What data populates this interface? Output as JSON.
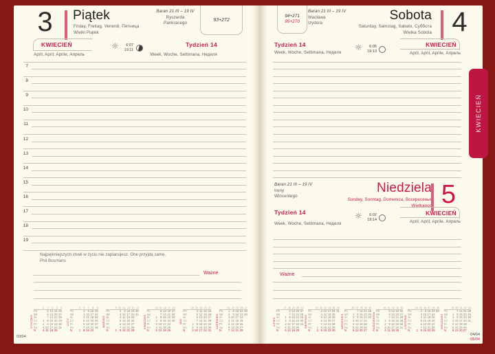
{
  "colors": {
    "border": "#861713",
    "accent": "#CC1747",
    "bar": "#D95F75",
    "tab": "#BE1641",
    "page": "#FCFAED",
    "line": "#C9C5B3"
  },
  "tab_label": "KWIECIEŃ",
  "footer": {
    "left": "03/04",
    "right_top": "04/04",
    "right_bottom": "05/04"
  },
  "common": {
    "month_label": "KWIECIEŃ",
    "month_langs": "April, April, Aprile, Апрель",
    "week_label": "Tydzień 14",
    "week_langs": "Week, Woche, Settimana, Неделя",
    "zodiac": "Baran 21 III – 19 IV",
    "important_label": "Ważne"
  },
  "friday": {
    "number": "3",
    "name": "Piątek",
    "langs": "Friday, Freitag, Venerdì, Пятница",
    "holiday": "Wielki Piątek",
    "namedays": [
      "Ryszarda",
      "Pankracego"
    ],
    "day_of_year": "93+272",
    "sunrise": "6:07",
    "sunset": "19:11",
    "hours": [
      "7",
      "8",
      "9",
      "10",
      "11",
      "12",
      "13",
      "14",
      "15",
      "16",
      "17",
      "18",
      "19"
    ],
    "quote": "Najpiękniejszych chwil w życiu nie zaplanujesz. One przyjdą same.",
    "quote_author": "Phil Bosmans"
  },
  "saturday": {
    "number": "4",
    "name": "Sobota",
    "langs": "Saturday, Samstag, Sabato, Суббота",
    "holiday": "Wielka Sobota",
    "namedays": [
      "Wacława",
      "Izydora"
    ],
    "day_of_year": "94+271",
    "day_of_year2": "95+270",
    "sunrise": "6:05",
    "sunset": "19:13"
  },
  "sunday": {
    "number": "5",
    "name": "Niedziela",
    "langs": "Sunday, Sonntag, Domenica, Воскресенье",
    "holiday": "Wielkanoc",
    "namedays": [
      "Ireny",
      "Wincentego"
    ],
    "sunrise": "6:02",
    "sunset": "19:14"
  },
  "mini_calendars": {
    "day_abbrs": [
      "Pn",
      "Wt",
      "Śr",
      "Cz",
      "Pt",
      "So",
      "N"
    ],
    "left": [
      {
        "name": "STYCZEŃ",
        "days": 31,
        "start": 3,
        "week1": 1
      },
      {
        "name": "LUTY",
        "days": 28,
        "start": 6,
        "week1": 5
      },
      {
        "name": "MARZEC",
        "days": 31,
        "start": 6,
        "week1": 9
      },
      {
        "name": "KWIECIEŃ",
        "days": 30,
        "start": 2,
        "week1": 14
      },
      {
        "name": "MAJ",
        "days": 31,
        "start": 4,
        "week1": 18
      },
      {
        "name": "CZERWIEC",
        "days": 30,
        "start": 0,
        "week1": 23
      }
    ],
    "right": [
      {
        "name": "LIPIEC",
        "days": 31,
        "start": 2,
        "week1": 27
      },
      {
        "name": "SIERPIEŃ",
        "days": 31,
        "start": 5,
        "week1": 31
      },
      {
        "name": "WRZESIEŃ",
        "days": 30,
        "start": 1,
        "week1": 36
      },
      {
        "name": "PAŹDZIERNIK",
        "days": 31,
        "start": 3,
        "week1": 40
      },
      {
        "name": "LISTOPAD",
        "days": 30,
        "start": 6,
        "week1": 44
      },
      {
        "name": "GRUDZIEŃ",
        "days": 31,
        "start": 1,
        "week1": 49
      }
    ]
  },
  "layout_counts": {
    "saturday_lines": 16,
    "sunday_lines": 5,
    "extra_lines_tops": [
      402,
      414,
      426
    ]
  }
}
